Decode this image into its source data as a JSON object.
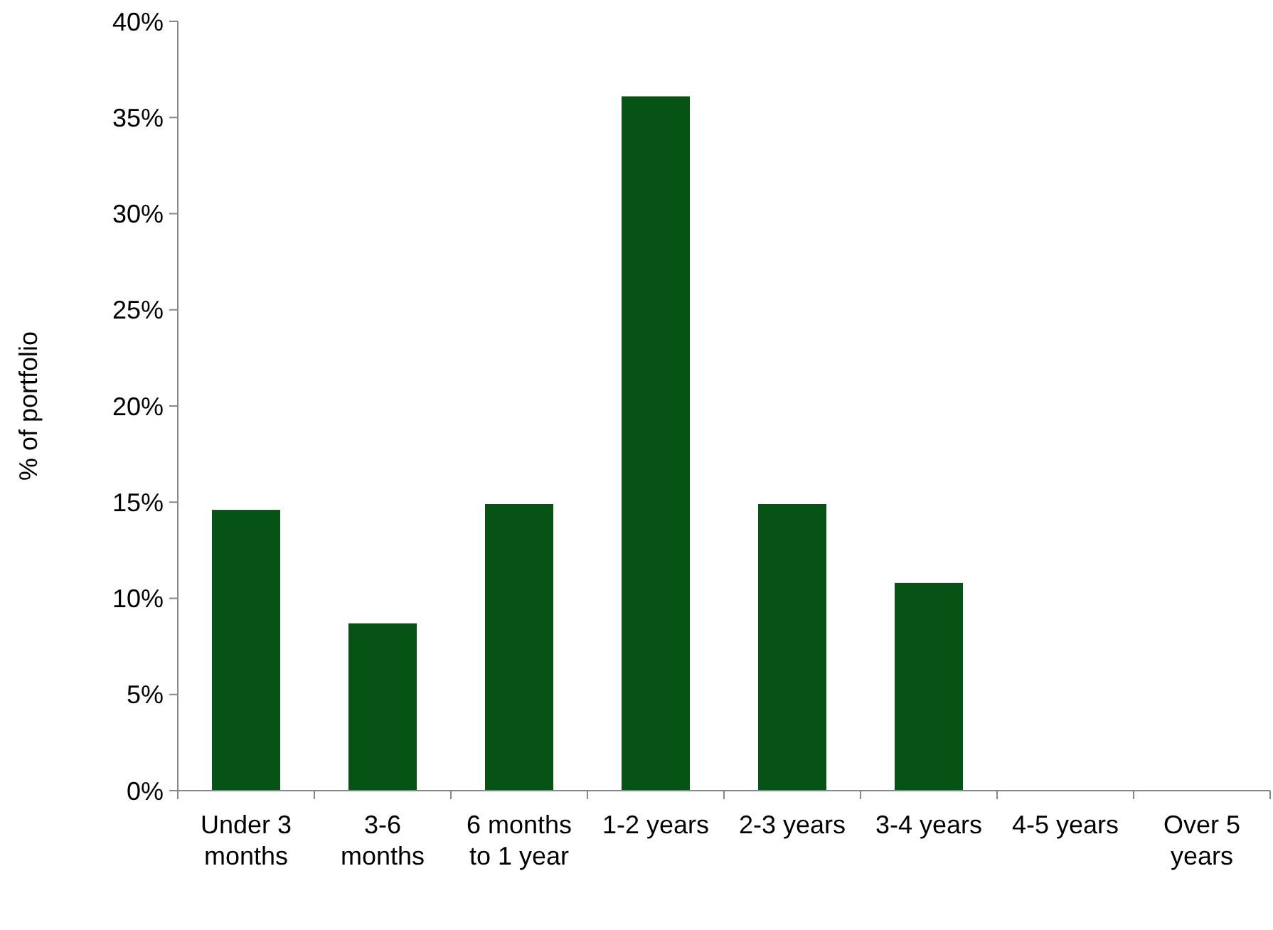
{
  "chart_data": {
    "type": "bar",
    "ylabel": "% of portfolio",
    "categories": [
      "Under 3 months",
      "3-6 months",
      "6 months to 1 year",
      "1-2 years",
      "2-3 years",
      "3-4 years",
      "4-5 years",
      "Over 5 years"
    ],
    "values": [
      14.6,
      8.7,
      14.9,
      36.1,
      14.9,
      10.8,
      0,
      0
    ],
    "color": "#075316",
    "ylim": [
      0,
      40
    ],
    "yticks": [
      {
        "value": 0,
        "label": "0%"
      },
      {
        "value": 5,
        "label": "5%"
      },
      {
        "value": 10,
        "label": "10%"
      },
      {
        "value": 15,
        "label": "15%"
      },
      {
        "value": 20,
        "label": "20%"
      },
      {
        "value": 25,
        "label": "25%"
      },
      {
        "value": 30,
        "label": "30%"
      },
      {
        "value": 35,
        "label": "35%"
      },
      {
        "value": 40,
        "label": "40%"
      }
    ],
    "grid": false
  }
}
